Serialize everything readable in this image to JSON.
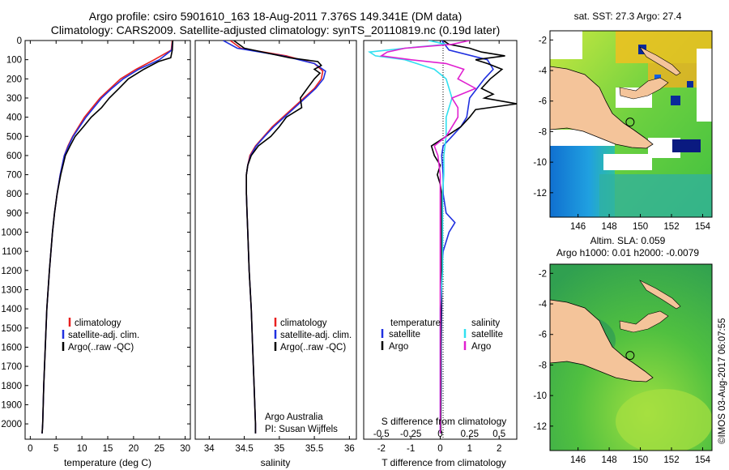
{
  "title": {
    "line1": "Argo profile: csiro 5901610_163 18-Aug-2011 7.376S 149.341E (DM data)",
    "line2": "Climatology: CARS2009. Satellite-adjusted climatology: synTS_20110819.nc (0.19d later)"
  },
  "colors": {
    "climatology": "#e82020",
    "satellite": "#2030e0",
    "argo": "#000000",
    "sal_satellite": "#30e0f0",
    "sal_argo": "#e020d0",
    "land": "#f4c49a"
  },
  "chart_data": [
    {
      "type": "line",
      "name": "temperature-profile",
      "xlabel": "temperature (deg C)",
      "ylabel": "",
      "xlim": [
        -1,
        31
      ],
      "ylim": [
        2080,
        0
      ],
      "xticks": [
        "0",
        "5",
        "10",
        "15",
        "20",
        "25",
        "30"
      ],
      "xtick_values": [
        0,
        5,
        10,
        15,
        20,
        25,
        30
      ],
      "yticks": [
        "0",
        "100",
        "200",
        "300",
        "400",
        "500",
        "600",
        "700",
        "800",
        "900",
        "1000",
        "1100",
        "1200",
        "1300",
        "1400",
        "1500",
        "1600",
        "1700",
        "1800",
        "1900",
        "2000"
      ],
      "ytick_values": [
        0,
        100,
        200,
        300,
        400,
        500,
        600,
        700,
        800,
        900,
        1000,
        1100,
        1200,
        1300,
        1400,
        1500,
        1600,
        1700,
        1800,
        1900,
        2000
      ],
      "legend": [
        "climatology",
        "satellite-adj. clim.",
        "Argo(..raw -QC)"
      ],
      "series": [
        {
          "name": "climatology",
          "color": "#e82020",
          "depth": [
            0,
            50,
            100,
            150,
            200,
            250,
            300,
            400,
            500,
            550,
            600,
            700,
            800,
            900,
            1000,
            1200,
            1400,
            1600,
            1800,
            2000,
            2050
          ],
          "values": [
            27.5,
            27.3,
            24,
            20.5,
            17.5,
            15.5,
            13.5,
            10.5,
            8.2,
            7.3,
            6.6,
            5.8,
            5.2,
            4.7,
            4.3,
            3.7,
            3.2,
            2.9,
            2.6,
            2.4,
            2.3
          ]
        },
        {
          "name": "satellite-adj. clim.",
          "color": "#2030e0",
          "depth": [
            0,
            50,
            100,
            150,
            200,
            250,
            300,
            400,
            500,
            550,
            600,
            700,
            800,
            900,
            1000,
            1200,
            1400,
            1600,
            1800,
            2000,
            2050
          ],
          "values": [
            27.6,
            27.4,
            25,
            21,
            18,
            15.8,
            13.8,
            10.8,
            8.3,
            7.4,
            6.6,
            5.8,
            5.2,
            4.7,
            4.3,
            3.7,
            3.2,
            2.9,
            2.6,
            2.4,
            2.3
          ]
        },
        {
          "name": "Argo(..raw -QC)",
          "color": "#000000",
          "depth": [
            0,
            50,
            90,
            110,
            150,
            200,
            250,
            300,
            350,
            400,
            450,
            500,
            550,
            600,
            700,
            800,
            900,
            1000,
            1200,
            1400,
            1600,
            1800,
            2000,
            2050
          ],
          "values": [
            27.6,
            27.5,
            27.2,
            24.8,
            22,
            19,
            17.2,
            15.3,
            13.8,
            11.8,
            10.3,
            8.7,
            7.7,
            6.8,
            5.9,
            5.2,
            4.7,
            4.3,
            3.7,
            3.2,
            2.9,
            2.6,
            2.4,
            2.3
          ]
        }
      ]
    },
    {
      "type": "line",
      "name": "salinity-profile",
      "xlabel": "salinity",
      "xlim": [
        33.8,
        36.1
      ],
      "ylim": [
        2080,
        0
      ],
      "xticks": [
        "34",
        "34.5",
        "35",
        "35.5",
        "36"
      ],
      "xtick_values": [
        34,
        34.5,
        35,
        35.5,
        36
      ],
      "legend": [
        "climatology",
        "satellite-adj. clim.",
        "Argo(..raw -QC)"
      ],
      "annotation": {
        "line1": "Argo Australia",
        "line2": "PI: Susan Wijffels"
      },
      "series": [
        {
          "name": "climatology",
          "color": "#e82020",
          "depth": [
            0,
            40,
            80,
            120,
            160,
            200,
            250,
            300,
            350,
            400,
            450,
            500,
            550,
            600,
            650,
            700,
            800,
            900,
            1000,
            1200,
            1400,
            1600,
            1800,
            2000,
            2050
          ],
          "values": [
            34.3,
            34.45,
            35.1,
            35.5,
            35.62,
            35.6,
            35.5,
            35.35,
            35.2,
            35.05,
            34.9,
            34.78,
            34.66,
            34.58,
            34.55,
            34.53,
            34.53,
            34.54,
            34.55,
            34.57,
            34.6,
            34.62,
            34.64,
            34.66,
            34.66
          ]
        },
        {
          "name": "satellite-adj. clim.",
          "color": "#2030e0",
          "depth": [
            0,
            40,
            80,
            120,
            160,
            200,
            250,
            300,
            350,
            400,
            450,
            500,
            550,
            600,
            650,
            700,
            800,
            900,
            1000,
            1200,
            1400,
            1600,
            1800,
            2000,
            2050
          ],
          "values": [
            34.2,
            34.4,
            35.05,
            35.5,
            35.66,
            35.63,
            35.52,
            35.37,
            35.22,
            35.07,
            34.92,
            34.79,
            34.67,
            34.59,
            34.55,
            34.53,
            34.53,
            34.54,
            34.55,
            34.57,
            34.6,
            34.62,
            34.64,
            34.66,
            34.66
          ]
        },
        {
          "name": "Argo(..raw -QC)",
          "color": "#000000",
          "depth": [
            0,
            40,
            90,
            110,
            130,
            150,
            170,
            200,
            250,
            300,
            350,
            400,
            450,
            500,
            550,
            600,
            650,
            700,
            800,
            900,
            1000,
            1200,
            1400,
            1600,
            1800,
            2000,
            2050
          ],
          "values": [
            34.35,
            34.5,
            35.15,
            35.55,
            35.6,
            35.5,
            35.58,
            35.5,
            35.4,
            35.3,
            35.32,
            35.1,
            35.0,
            34.88,
            34.7,
            34.6,
            34.55,
            34.53,
            34.53,
            34.54,
            34.55,
            34.57,
            34.6,
            34.62,
            34.64,
            34.66,
            34.66
          ]
        }
      ]
    },
    {
      "type": "line",
      "name": "difference-profile",
      "xlabel": "T difference from climatology",
      "xlabel_top": "S difference from climatology",
      "xlim": [
        -2.6,
        2.6
      ],
      "ylim": [
        2080,
        0
      ],
      "xticks": [
        "-2",
        "-1",
        "0",
        "1",
        "2"
      ],
      "xtick_values": [
        -2,
        -1,
        0,
        1,
        2
      ],
      "s_ticks": [
        "-0.5",
        "-0.25",
        "0",
        "0.25",
        "0.5"
      ],
      "legend_headers": [
        "temperature",
        "salinity"
      ],
      "legend": [
        "satellite",
        "Argo",
        "satellite",
        "Argo"
      ],
      "series": [
        {
          "name": "T satellite",
          "color": "#2030e0",
          "depth": [
            0,
            50,
            100,
            150,
            200,
            300,
            400,
            450,
            500,
            550,
            600,
            700,
            800,
            900,
            950,
            1000,
            1100,
            1200,
            1400,
            1600,
            1800,
            2000,
            2050
          ],
          "values": [
            0.05,
            0.3,
            1.6,
            1.8,
            1.5,
            1.0,
            0.9,
            0.7,
            0.4,
            0.1,
            0.05,
            0.1,
            0.1,
            0.2,
            0.5,
            0.3,
            0.1,
            0.05,
            0.05,
            0.03,
            0.03,
            0.02,
            0.02
          ]
        },
        {
          "name": "T Argo",
          "color": "#000000",
          "depth": [
            0,
            20,
            40,
            60,
            80,
            100,
            120,
            150,
            200,
            250,
            280,
            300,
            330,
            360,
            400,
            450,
            500,
            530,
            550,
            600,
            650,
            700,
            750,
            800,
            900,
            1000,
            1200,
            1400,
            1600,
            1800,
            2000,
            2050
          ],
          "values": [
            0.1,
            0.3,
            1.0,
            1.4,
            2.2,
            1.2,
            1.6,
            2.1,
            1.7,
            1.4,
            1.8,
            1.5,
            2.6,
            1.2,
            1.0,
            0.7,
            0.2,
            -0.1,
            -0.3,
            -0.2,
            0.0,
            -0.1,
            0.0,
            0.05,
            0.05,
            0.05,
            0.05,
            0.03,
            0.02,
            0.02,
            0.02,
            0.02
          ]
        },
        {
          "name": "S satellite",
          "color": "#30e0f0",
          "depth": [
            0,
            20,
            40,
            60,
            80,
            100,
            120,
            150,
            200,
            300,
            400,
            500,
            600,
            700,
            800,
            900,
            1000,
            1200,
            1400,
            1600,
            1800,
            2000,
            2050
          ],
          "values": [
            -0.1,
            0.05,
            -0.3,
            -0.6,
            -0.55,
            -0.3,
            -0.2,
            -0.05,
            0.05,
            0.1,
            0.05,
            0.05,
            0.03,
            0.03,
            0.02,
            0.02,
            0.02,
            0.02,
            0.0,
            0.0,
            0.0,
            0.0,
            0.0
          ]
        },
        {
          "name": "S Argo",
          "color": "#e020d0",
          "depth": [
            0,
            20,
            40,
            60,
            80,
            100,
            120,
            150,
            200,
            250,
            300,
            350,
            400,
            500,
            550,
            600,
            700,
            800,
            900,
            1000,
            1200,
            1400,
            1600,
            1800,
            2000,
            2050
          ],
          "values": [
            0.25,
            0.1,
            -0.3,
            -0.45,
            -0.5,
            -0.25,
            0.05,
            0.2,
            0.15,
            0.3,
            0.1,
            0.15,
            0.15,
            0.05,
            -0.05,
            -0.02,
            0.0,
            0.0,
            0.0,
            0.0,
            0.0,
            0.0,
            0.0,
            0.0,
            0.0,
            0.0
          ]
        }
      ]
    },
    {
      "type": "heatmap",
      "name": "sst-map",
      "title": "sat. SST: 27.3 Argo: 27.4",
      "xlim": [
        144.2,
        154.6
      ],
      "ylim": [
        -13.6,
        -1.4
      ],
      "xticks": [
        "146",
        "148",
        "150",
        "152",
        "154"
      ],
      "xtick_values": [
        146,
        148,
        150,
        152,
        154
      ],
      "yticks": [
        "-2",
        "-4",
        "-6",
        "-8",
        "-10",
        "-12"
      ],
      "ytick_values": [
        -2,
        -4,
        -6,
        -8,
        -10,
        -12
      ],
      "float_position": {
        "lon": 149.341,
        "lat": -7.376
      }
    },
    {
      "type": "heatmap",
      "name": "sla-map",
      "title_line1": "Altim. SLA: 0.059",
      "title_line2": "Argo h1000: 0.01 h2000: -0.0079",
      "xlim": [
        144.2,
        154.6
      ],
      "ylim": [
        -13.6,
        -1.4
      ],
      "xticks": [
        "146",
        "148",
        "150",
        "152",
        "154"
      ],
      "xtick_values": [
        146,
        148,
        150,
        152,
        154
      ],
      "yticks": [
        "-2",
        "-4",
        "-6",
        "-8",
        "-10",
        "-12"
      ],
      "ytick_values": [
        -2,
        -4,
        -6,
        -8,
        -10,
        -12
      ],
      "float_position": {
        "lon": 149.341,
        "lat": -7.376
      }
    }
  ],
  "footer": {
    "credit": "©IMOS 03-Aug-2017 06:07:55"
  }
}
